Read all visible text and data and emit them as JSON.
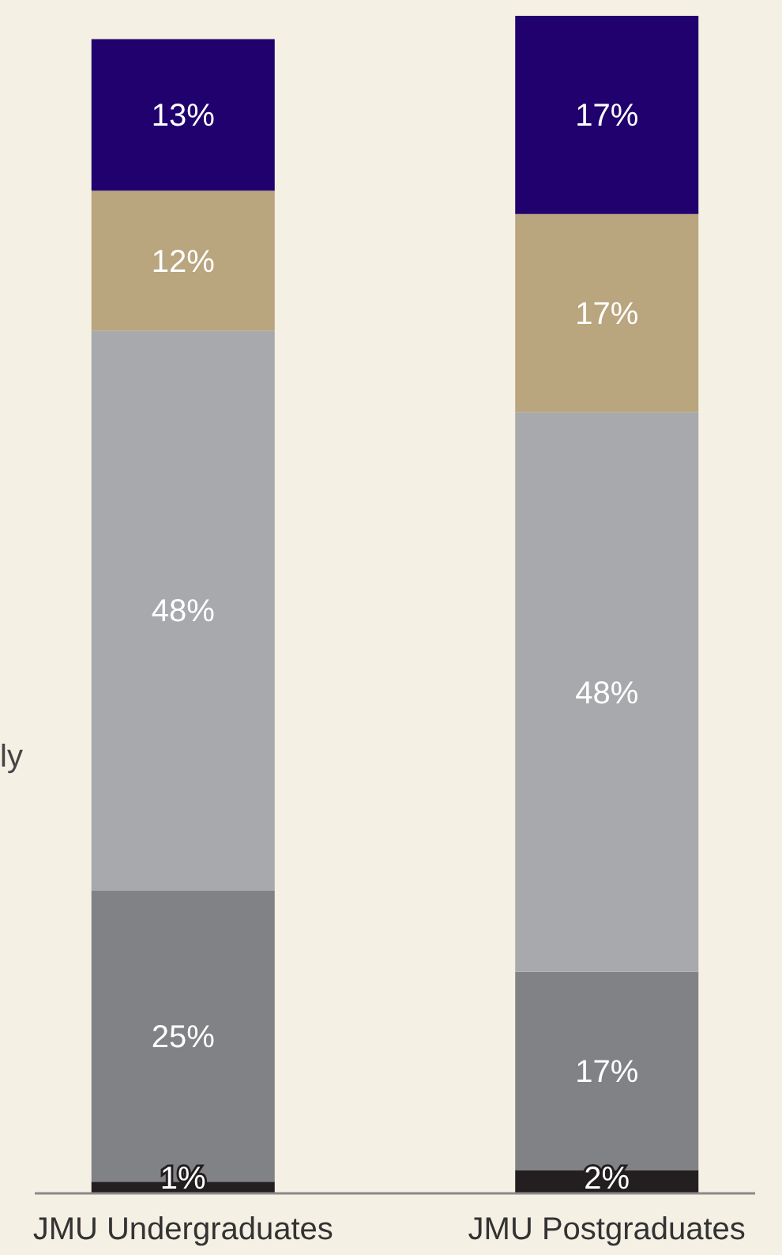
{
  "chart_data": {
    "type": "bar",
    "stacked": true,
    "tick_labels": "x",
    "categories": [
      "JMU Undergraduates",
      "JMU Postgraduates"
    ],
    "series": [
      {
        "color": "#231f20",
        "values": [
          1,
          2
        ],
        "value_labels": [
          "1%",
          "2%"
        ]
      },
      {
        "color": "#818285",
        "values": [
          25,
          17
        ],
        "value_labels": [
          "25%",
          "17%"
        ]
      },
      {
        "color": "#a7a9ac",
        "values": [
          48,
          48
        ],
        "value_labels": [
          "48%",
          "48%"
        ]
      },
      {
        "color": "#b9a57e",
        "values": [
          12,
          17
        ],
        "value_labels": [
          "12%",
          "17%"
        ]
      },
      {
        "color": "#20016e",
        "values": [
          13,
          17
        ],
        "value_labels": [
          "13%",
          "17%"
        ]
      }
    ],
    "annotations": [
      "ly"
    ]
  }
}
